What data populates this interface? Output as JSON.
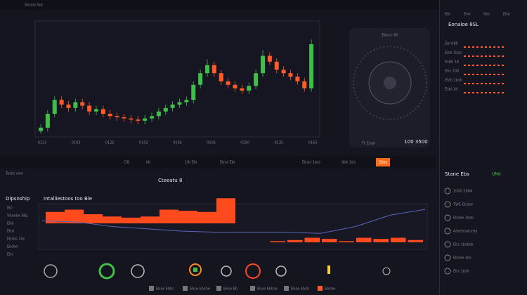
{
  "header": {
    "title": "Stnala tbb",
    "tabs": [
      "Ebl",
      "Enb",
      "Sbs",
      "Ebb"
    ]
  },
  "main_chart": {
    "type": "candlestick",
    "ylim": [
      0,
      100
    ],
    "x_labels": [
      "0113",
      "0103",
      "0125",
      "0103",
      "0105",
      "0105",
      "0150",
      "0135",
      "0163"
    ],
    "candles": [
      [
        5,
        8,
        11,
        3
      ],
      [
        8,
        20,
        23,
        5
      ],
      [
        20,
        32,
        35,
        17
      ],
      [
        32,
        28,
        35,
        25
      ],
      [
        28,
        25,
        31,
        22
      ],
      [
        25,
        30,
        33,
        22
      ],
      [
        30,
        27,
        33,
        24
      ],
      [
        27,
        22,
        30,
        19
      ],
      [
        22,
        24,
        27,
        19
      ],
      [
        24,
        20,
        27,
        17
      ],
      [
        20,
        18,
        23,
        15
      ],
      [
        18,
        17,
        21,
        14
      ],
      [
        17,
        16,
        20,
        13
      ],
      [
        16,
        15,
        19,
        12
      ],
      [
        15,
        14,
        18,
        11
      ],
      [
        14,
        16,
        19,
        11
      ],
      [
        16,
        18,
        21,
        13
      ],
      [
        18,
        22,
        25,
        15
      ],
      [
        22,
        25,
        28,
        19
      ],
      [
        25,
        28,
        31,
        22
      ],
      [
        28,
        30,
        33,
        25
      ],
      [
        30,
        32,
        35,
        27
      ],
      [
        32,
        45,
        48,
        29
      ],
      [
        45,
        55,
        58,
        42
      ],
      [
        55,
        62,
        67,
        52
      ],
      [
        62,
        55,
        65,
        52
      ],
      [
        55,
        48,
        58,
        45
      ],
      [
        48,
        45,
        51,
        42
      ],
      [
        45,
        42,
        48,
        39
      ],
      [
        42,
        40,
        45,
        37
      ],
      [
        40,
        44,
        47,
        37
      ],
      [
        44,
        55,
        58,
        41
      ],
      [
        55,
        70,
        75,
        52
      ],
      [
        70,
        65,
        73,
        62
      ],
      [
        65,
        58,
        68,
        55
      ],
      [
        58,
        55,
        61,
        52
      ],
      [
        55,
        52,
        58,
        49
      ],
      [
        52,
        48,
        55,
        45
      ],
      [
        48,
        42,
        51,
        39
      ],
      [
        42,
        80,
        84,
        39
      ]
    ],
    "up_color": "#3fbf4a",
    "down_color": "#ff5a2a"
  },
  "gauge_panel": {
    "title": "Ebonc 80",
    "readout": "100 3500",
    "label": "Tt Esab"
  },
  "toolbar": {
    "buttons": [
      "ClB",
      "llb",
      "1fb Elb",
      "Ebsa Elb",
      "Ebsls 1bss",
      "Sbb 1bs",
      "Ebbs"
    ]
  },
  "right_column": {
    "title": "Eonaloe 8SL",
    "rows": [
      "Ebl 080",
      "Elsb 1bsb",
      "Esbb 18",
      "Ebs 108",
      "Eblb 1bsb",
      "Esbl 18"
    ],
    "section": "Stane Ebs",
    "section_value": "UNd",
    "items": [
      "1000 2084",
      "TWE Ebsbe",
      "Ebsbe 1bsb",
      "Adsensatured",
      "Ebs 1bsbsb",
      "Ebsbe 1bs",
      "Ebs 1bsb"
    ]
  },
  "bottom_panel": {
    "caption": "Teste vise",
    "title": "Cteeatu 8",
    "side_title": "Dlpsnship",
    "side_rows": [
      "Ebl",
      "Vbanbe 8EL",
      "Ebb",
      "Ebsl",
      "Ebsbs 1bs",
      "Ebsbe",
      "Ebs"
    ],
    "chart": {
      "header": "Intalliestoos too Ble",
      "ylim": [
        0,
        40
      ],
      "upper": [
        10,
        12,
        8,
        6,
        5,
        6,
        12,
        11,
        10,
        22
      ],
      "lower": [
        0,
        1,
        2,
        4,
        3,
        1,
        4,
        3,
        4,
        2
      ],
      "line": [
        25,
        24,
        20,
        18,
        16,
        15,
        15,
        15,
        14,
        20,
        30,
        35
      ],
      "bar_color": "#ff4a1e",
      "line_color": "#5a63b8"
    }
  },
  "dock": {
    "buttons": [
      "Ebse Ebbs",
      "Ebse Ebsbe",
      "Ebse Eb",
      "Ebse Ebbse",
      "Ebse Ebsb",
      "Ebsbe"
    ]
  }
}
